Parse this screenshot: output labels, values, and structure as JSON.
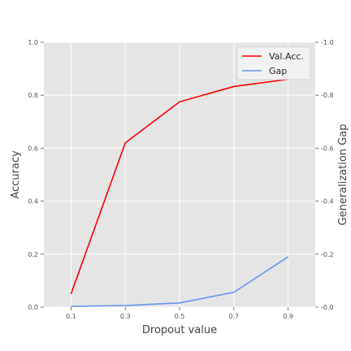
{
  "chart_data": {
    "type": "line",
    "x": [
      0.1,
      0.3,
      0.5,
      0.7,
      0.9
    ],
    "x_tick_labels": [
      "0.1",
      "0.3",
      "0.5",
      "0.7",
      "0.9"
    ],
    "xlim": [
      0.0,
      1.0
    ],
    "xlabel": "Dropout value",
    "ylabel": "Accuracy",
    "ylabel_right": "Generalization Gap",
    "ylim": [
      0.0,
      1.0
    ],
    "ylim_right": [
      0.0,
      1.0
    ],
    "y_tick_labels": [
      "0.0",
      "0.2",
      "0.4",
      "0.6",
      "0.8",
      "1.0"
    ],
    "y_tick_labels_right": [
      "0.0",
      "0.2",
      "0.4",
      "0.6",
      "0.8",
      "1.0"
    ],
    "series": [
      {
        "name": "Val.Acc.",
        "color": "#ff0000",
        "axis": "left",
        "values": [
          0.05,
          0.62,
          0.775,
          0.833,
          0.86
        ]
      },
      {
        "name": "Gap",
        "color": "#6495ed",
        "axis": "right",
        "values": [
          0.003,
          0.006,
          0.016,
          0.056,
          0.19
        ]
      }
    ],
    "grid": true,
    "background": "#e5e5e5",
    "legend_position": "top-right"
  }
}
